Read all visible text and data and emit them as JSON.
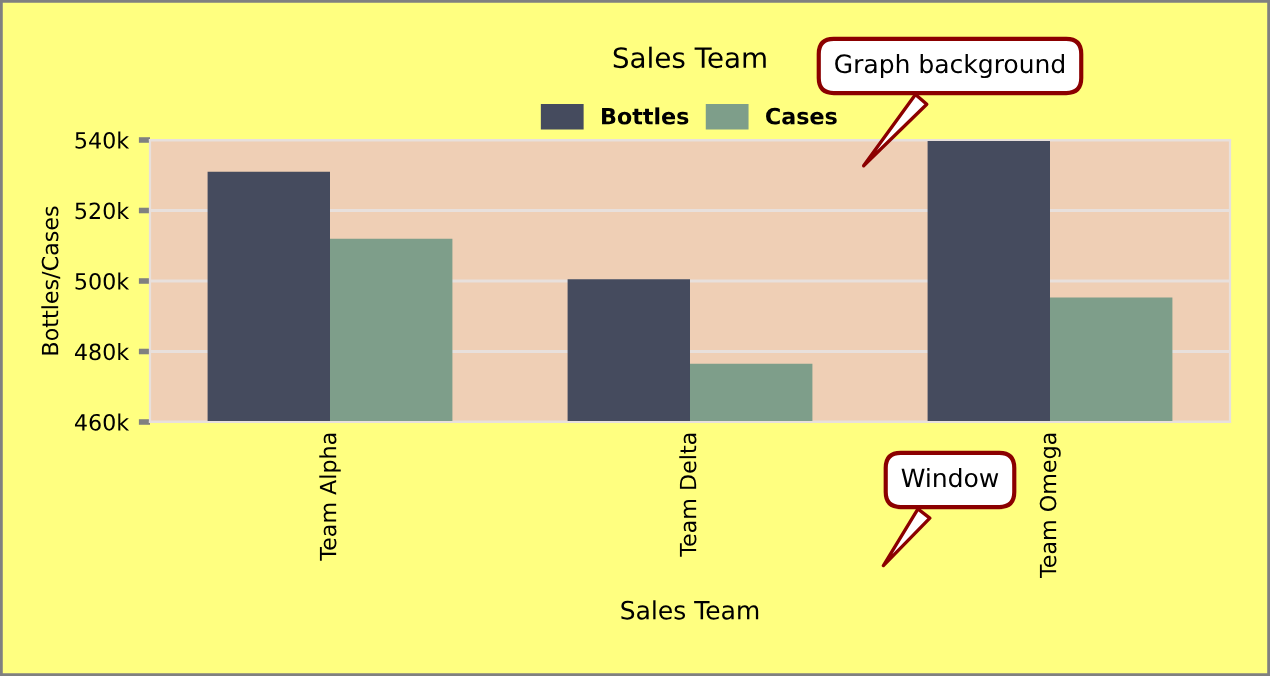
{
  "chart_data": {
    "type": "bar",
    "title": "Sales Team",
    "xlabel": "Sales Team",
    "ylabel": "Bottles/Cases",
    "categories": [
      "Team Alpha",
      "Team Delta",
      "Team Omega"
    ],
    "series": [
      {
        "name": "Bottles",
        "color": "#454b5e",
        "values": [
          531000,
          500500,
          540000
        ]
      },
      {
        "name": "Cases",
        "color": "#7e9e8a",
        "values": [
          512000,
          476500,
          495300
        ]
      }
    ],
    "ylim": [
      460000,
      540000
    ],
    "yticks": [
      {
        "value": 460000,
        "label": "460k"
      },
      {
        "value": 480000,
        "label": "480k"
      },
      {
        "value": 500000,
        "label": "500k"
      },
      {
        "value": 520000,
        "label": "520k"
      },
      {
        "value": 540000,
        "label": "540k"
      }
    ],
    "grid": "y",
    "legend": "top",
    "annotations": [
      "Graph background",
      "Window"
    ]
  }
}
